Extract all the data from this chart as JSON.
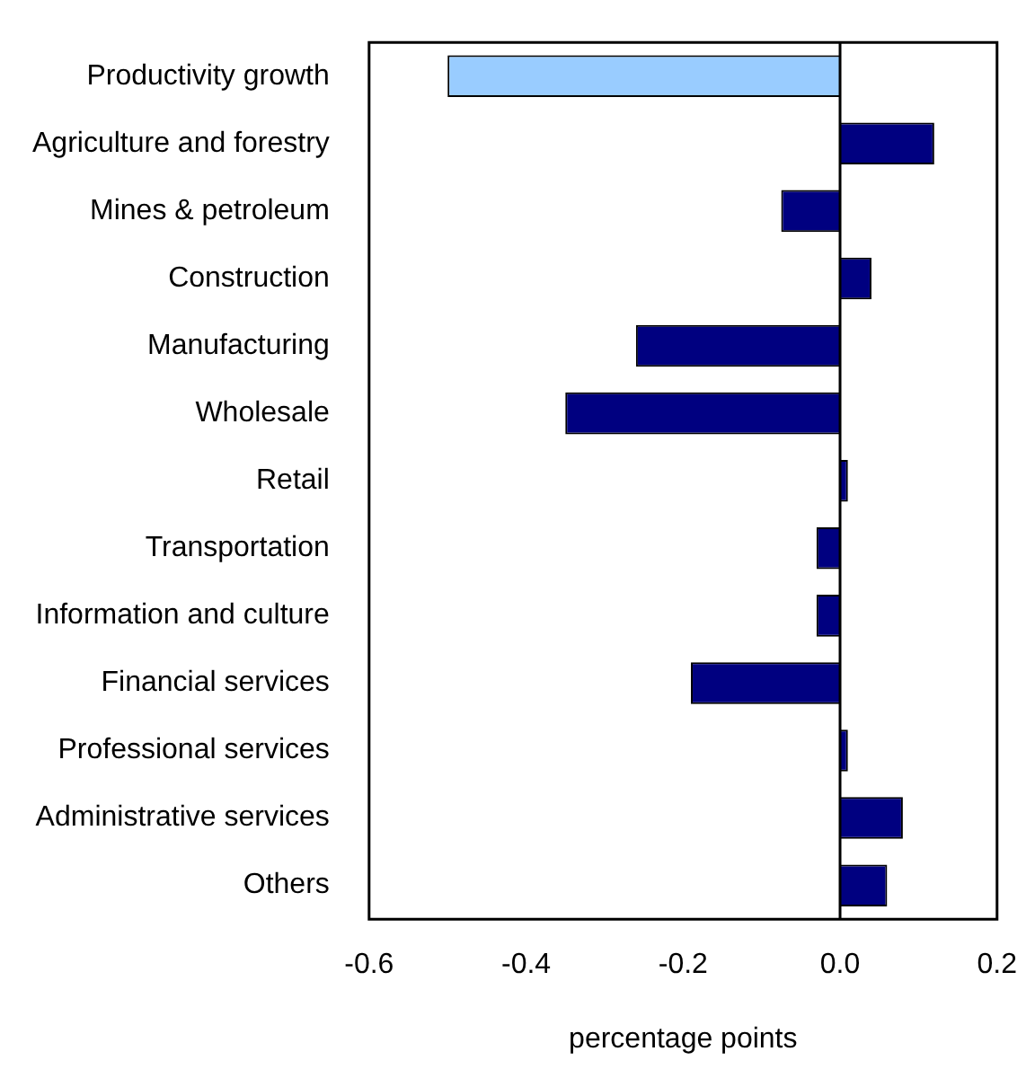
{
  "chart_data": {
    "type": "bar",
    "orientation": "horizontal",
    "xlabel": "percentage points",
    "categories": [
      "Productivity growth",
      "Agriculture and forestry",
      "Mines & petroleum",
      "Construction",
      "Manufacturing",
      "Wholesale",
      "Retail",
      "Transportation",
      "Information and culture",
      "Financial services",
      "Professional services",
      "Administrative services",
      "Others"
    ],
    "values": [
      -0.5,
      0.12,
      -0.075,
      0.04,
      -0.26,
      -0.35,
      0.01,
      -0.03,
      -0.03,
      -0.19,
      0.01,
      0.08,
      0.06
    ],
    "colors": [
      "#99ccff",
      "#000080",
      "#000080",
      "#000080",
      "#000080",
      "#000080",
      "#000080",
      "#000080",
      "#000080",
      "#000080",
      "#000080",
      "#000080",
      "#000080"
    ],
    "xlim": [
      -0.6,
      0.2
    ],
    "xticks": [
      {
        "value": -0.6,
        "label": "-0.6"
      },
      {
        "value": -0.4,
        "label": "-0.4"
      },
      {
        "value": -0.2,
        "label": "-0.2"
      },
      {
        "value": 0,
        "label": "0.0"
      },
      {
        "value": 0.2,
        "label": "0.2"
      }
    ],
    "ref_lines": [
      {
        "axis": "x",
        "value": 0
      }
    ],
    "grid": false,
    "legend": false
  }
}
